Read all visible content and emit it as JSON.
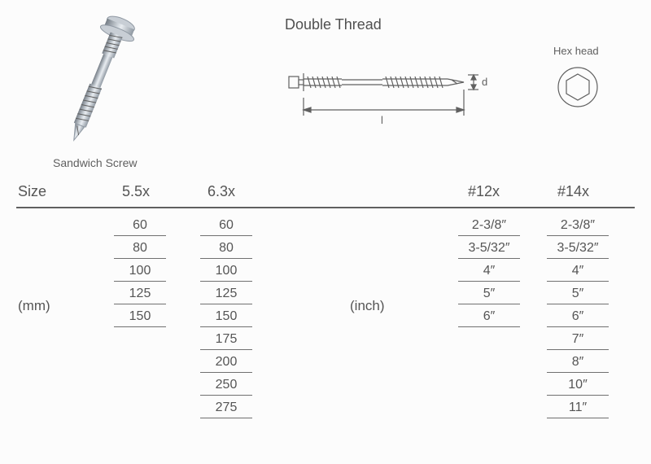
{
  "title": "Double Thread",
  "product_label": "Sandwich Screw",
  "hex_label": "Hex head",
  "diagram": {
    "length_label": "l",
    "diameter_label": "d",
    "screw_color": "#8f98a2",
    "line_color": "#606060"
  },
  "table": {
    "size_label": "Size",
    "unit_mm": "(mm)",
    "unit_inch": "(inch)",
    "columns": [
      {
        "header": "5.5x",
        "values": [
          "60",
          "80",
          "100",
          "125",
          "150"
        ]
      },
      {
        "header": "6.3x",
        "values": [
          "60",
          "80",
          "100",
          "125",
          "150",
          "175",
          "200",
          "250",
          "275"
        ]
      },
      {
        "header": "#12x",
        "values": [
          "2-3/8″",
          "3-5/32″",
          "4″",
          "5″",
          "6″"
        ]
      },
      {
        "header": "#14x",
        "values": [
          "2-3/8″",
          "3-5/32″",
          "4″",
          "5″",
          "6″",
          "7″",
          "8″",
          "10″",
          "11″"
        ]
      }
    ]
  },
  "colors": {
    "text": "#606060",
    "rule": "#707070",
    "screw_fill": "#b0b8c0",
    "screw_highlight": "#d6dce2",
    "screw_shadow": "#757d86"
  }
}
